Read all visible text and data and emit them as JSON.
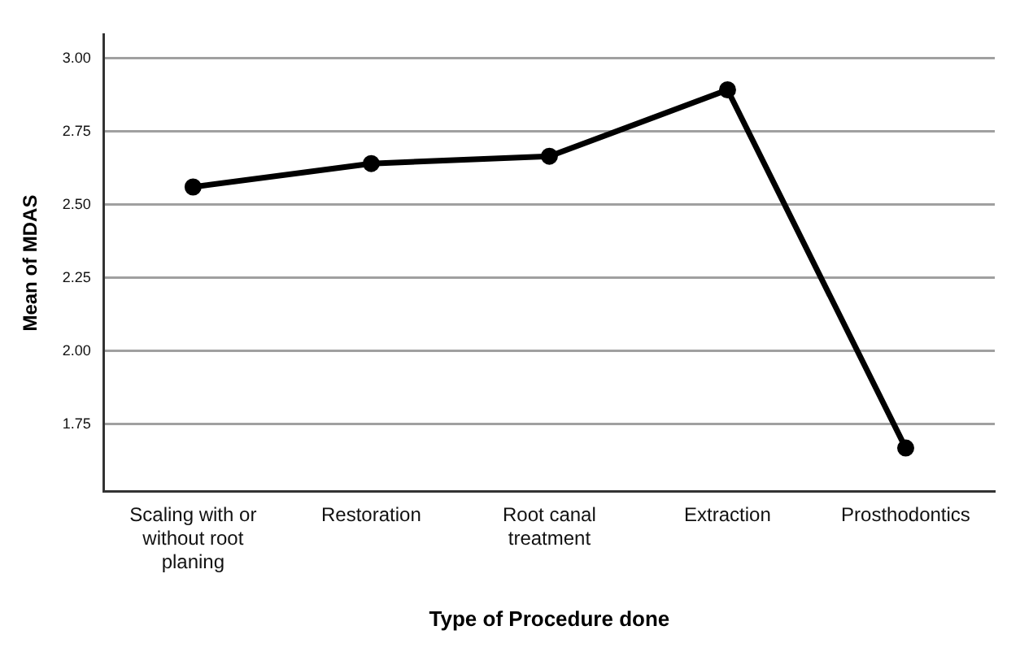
{
  "chart_data": {
    "type": "line",
    "xlabel": "Type of Procedure done",
    "ylabel": "Mean of MDAS",
    "categories": [
      "Scaling with or without root planing",
      "Restoration",
      "Root canal treatment",
      "Extraction",
      "Prosthodontics"
    ],
    "series": [
      {
        "color": "#000000",
        "values": [
          2.56,
          2.64,
          2.665,
          2.892,
          1.668
        ]
      }
    ],
    "ylim": [
      1.52,
      3.08
    ],
    "yticks": [
      {
        "value": 1.75,
        "label": "1.75"
      },
      {
        "value": 2.0,
        "label": "2.00"
      },
      {
        "value": 2.25,
        "label": "2.25"
      },
      {
        "value": 2.5,
        "label": "2.50"
      },
      {
        "value": 2.75,
        "label": "2.75"
      },
      {
        "value": 3.0,
        "label": "3.00"
      }
    ],
    "grid": "y",
    "marker": "circle",
    "line_style": "solid",
    "legend": false
  }
}
